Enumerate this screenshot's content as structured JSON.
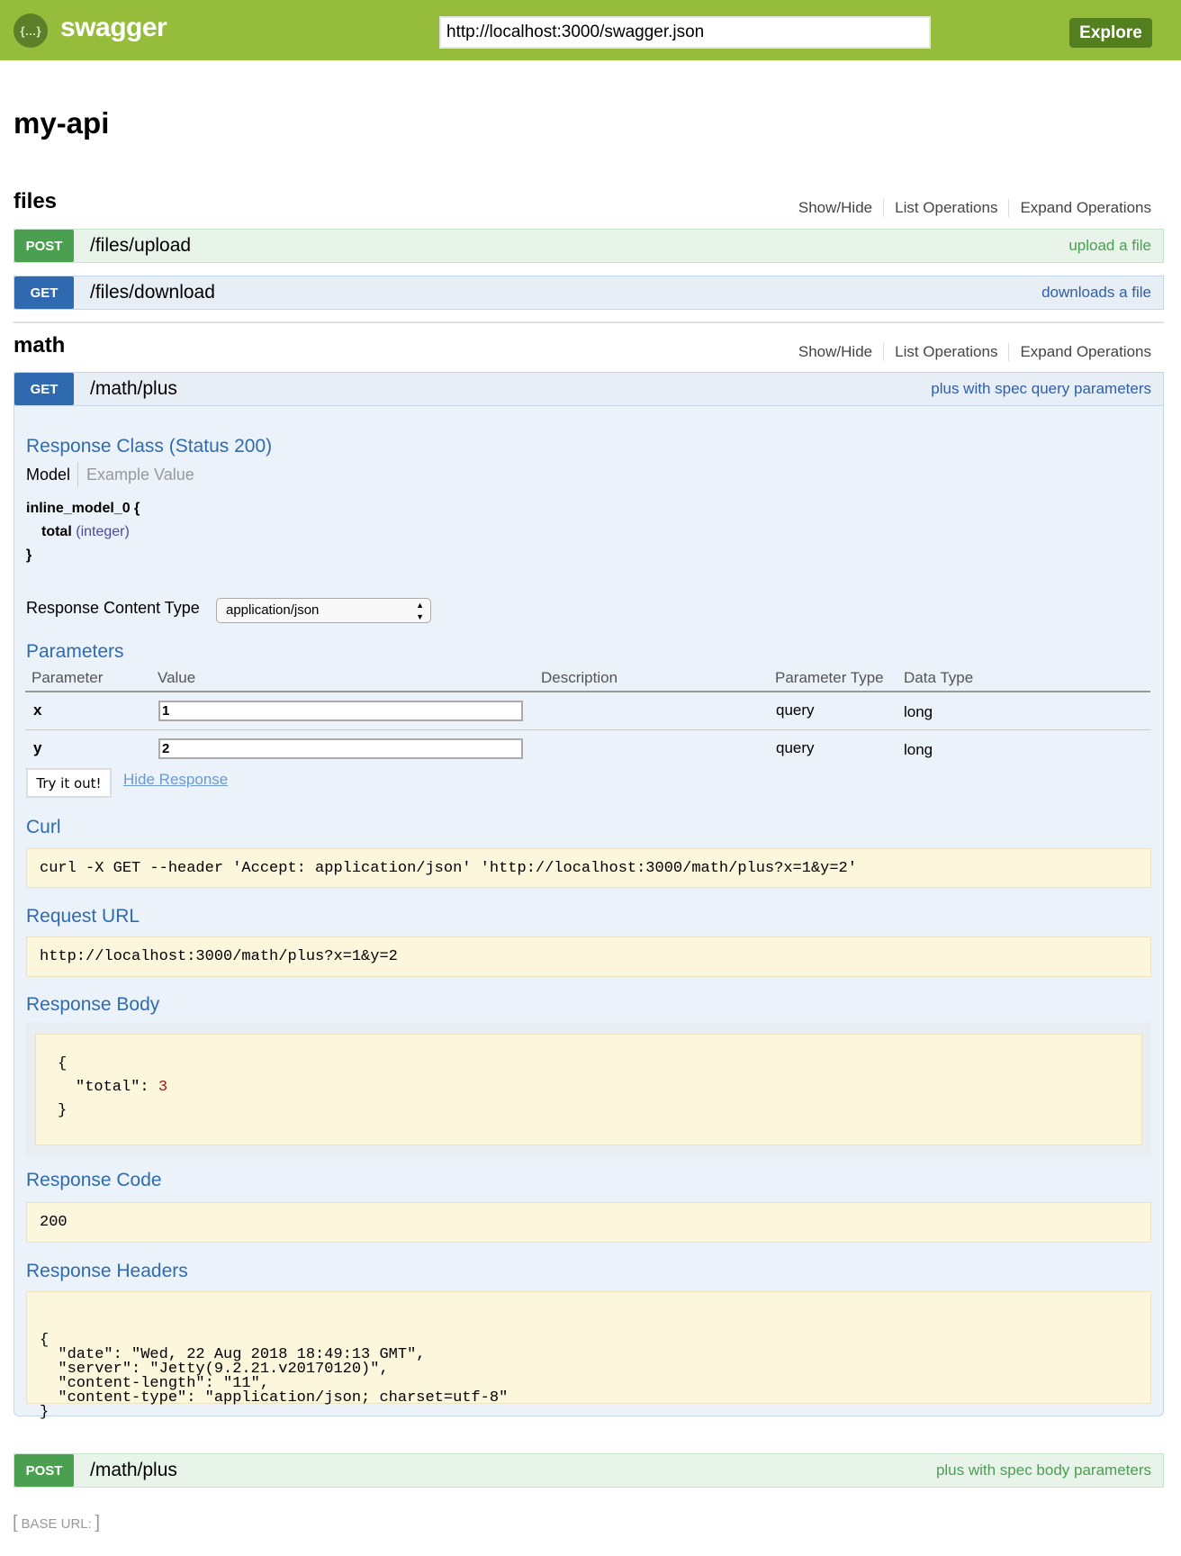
{
  "header": {
    "logo_icon": "swagger-braces-icon",
    "brand": "swagger",
    "url_value": "http://localhost:3000/swagger.json",
    "explore_label": "Explore",
    "color": "#96bc3c"
  },
  "api_title": "my-api",
  "sections": [
    {
      "name": "files",
      "links": [
        "Show/Hide",
        "List Operations",
        "Expand Operations"
      ],
      "operations": [
        {
          "method": "POST",
          "path": "/files/upload",
          "summary": "upload a file"
        },
        {
          "method": "GET",
          "path": "/files/download",
          "summary": "downloads a file"
        }
      ]
    },
    {
      "name": "math",
      "links": [
        "Show/Hide",
        "List Operations",
        "Expand Operations"
      ],
      "operations": [
        {
          "method": "GET",
          "path": "/math/plus",
          "summary": "plus with spec query parameters"
        },
        {
          "method": "POST",
          "path": "/math/plus",
          "summary": "plus with spec body parameters"
        }
      ]
    }
  ],
  "expanded": {
    "response_class": "Response Class (Status 200)",
    "model_tab": "Model",
    "example_tab": "Example Value",
    "model_name": "inline_model_0 {",
    "model_field": "total",
    "model_type": "(integer)",
    "model_close": "}",
    "content_type_label": "Response Content Type",
    "content_type_value": "application/json",
    "parameters_heading": "Parameters",
    "columns": [
      "Parameter",
      "Value",
      "Description",
      "Parameter Type",
      "Data Type"
    ],
    "params": [
      {
        "name": "x",
        "value": "1",
        "description": "",
        "param_type": "query",
        "data_type": "long"
      },
      {
        "name": "y",
        "value": "2",
        "description": "",
        "param_type": "query",
        "data_type": "long"
      }
    ],
    "try_label": "Try it out!",
    "hide_label": "Hide Response",
    "curl_heading": "Curl",
    "curl": "curl -X GET --header 'Accept: application/json' 'http://localhost:3000/math/plus?x=1&y=2'",
    "request_url_heading": "Request URL",
    "request_url": "http://localhost:3000/math/plus?x=1&y=2",
    "response_body_heading": "Response Body",
    "body_open": "{",
    "body_key": "\"total\": ",
    "body_value": "3",
    "body_close": "}",
    "response_code_heading": "Response Code",
    "response_code": "200",
    "response_headers_heading": "Response Headers",
    "response_headers": [
      "{",
      "  \"date\": \"Wed, 22 Aug 2018 18:49:13 GMT\",",
      "  \"server\": \"Jetty(9.2.21.v20170120)\",",
      "  \"content-length\": \"11\",",
      "  \"content-type\": \"application/json; charset=utf-8\"",
      "}"
    ]
  },
  "footer": {
    "base_url_label": "BASE URL",
    "base_url_value": ""
  }
}
